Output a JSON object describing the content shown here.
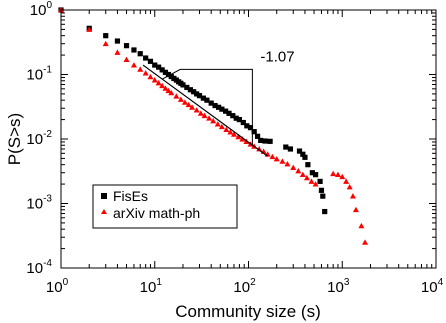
{
  "chart_data": {
    "type": "scatter",
    "xscale": "log",
    "yscale": "log",
    "xlim": [
      1,
      10000
    ],
    "ylim": [
      0.0001,
      1
    ],
    "xlabel": "Community size (s)",
    "ylabel": "P(S>s)",
    "x_tick_labels": [
      {
        "value": 1,
        "base": "10",
        "exp": "0"
      },
      {
        "value": 10,
        "base": "10",
        "exp": "1"
      },
      {
        "value": 100,
        "base": "10",
        "exp": "2"
      },
      {
        "value": 1000,
        "base": "10",
        "exp": "3"
      },
      {
        "value": 10000,
        "base": "10",
        "exp": "4"
      }
    ],
    "y_tick_labels": [
      {
        "value": 1,
        "base": "10",
        "exp": "0"
      },
      {
        "value": 0.1,
        "base": "10",
        "exp": "-1"
      },
      {
        "value": 0.01,
        "base": "10",
        "exp": "-2"
      },
      {
        "value": 0.001,
        "base": "10",
        "exp": "-3"
      },
      {
        "value": 0.0001,
        "base": "10",
        "exp": "-4"
      }
    ],
    "legend_position": "bottom-left",
    "annotation": {
      "text": "-1.07",
      "slope": -1.07,
      "line_x": [
        7.5,
        160
      ],
      "line_y": [
        0.14,
        0.0054
      ]
    },
    "series": [
      {
        "name": "FisEs",
        "marker": "square",
        "color": "#000000",
        "points": [
          [
            1,
            1
          ],
          [
            2,
            0.52
          ],
          [
            3,
            0.4
          ],
          [
            4,
            0.33
          ],
          [
            5,
            0.28
          ],
          [
            6,
            0.24
          ],
          [
            7,
            0.21
          ],
          [
            8,
            0.18
          ],
          [
            9,
            0.16
          ],
          [
            10,
            0.14
          ],
          [
            11,
            0.13
          ],
          [
            12,
            0.118
          ],
          [
            13,
            0.108
          ],
          [
            14,
            0.1
          ],
          [
            15,
            0.093
          ],
          [
            16,
            0.087
          ],
          [
            17,
            0.082
          ],
          [
            18,
            0.077
          ],
          [
            19,
            0.073
          ],
          [
            20,
            0.069
          ],
          [
            22,
            0.063
          ],
          [
            24,
            0.058
          ],
          [
            26,
            0.054
          ],
          [
            28,
            0.05
          ],
          [
            30,
            0.047
          ],
          [
            33,
            0.043
          ],
          [
            36,
            0.04
          ],
          [
            40,
            0.036
          ],
          [
            44,
            0.033
          ],
          [
            48,
            0.031
          ],
          [
            52,
            0.029
          ],
          [
            57,
            0.027
          ],
          [
            62,
            0.025
          ],
          [
            68,
            0.023
          ],
          [
            74,
            0.021
          ],
          [
            80,
            0.02
          ],
          [
            88,
            0.018
          ],
          [
            96,
            0.016
          ],
          [
            105,
            0.015
          ],
          [
            115,
            0.013
          ],
          [
            125,
            0.011
          ],
          [
            135,
            0.0095
          ],
          [
            150,
            0.0093
          ],
          [
            170,
            0.0092
          ],
          [
            250,
            0.0075
          ],
          [
            280,
            0.007
          ],
          [
            350,
            0.0065
          ],
          [
            380,
            0.0058
          ],
          [
            400,
            0.0052
          ],
          [
            430,
            0.004
          ],
          [
            480,
            0.003
          ],
          [
            520,
            0.0028
          ],
          [
            580,
            0.0022
          ],
          [
            600,
            0.0016
          ],
          [
            620,
            0.0013
          ],
          [
            650,
            0.00075
          ]
        ]
      },
      {
        "name": "arXiv math-ph",
        "marker": "triangle",
        "color": "#ff0000",
        "points": [
          [
            1,
            1
          ],
          [
            2,
            0.5
          ],
          [
            3,
            0.3
          ],
          [
            4,
            0.22
          ],
          [
            5,
            0.17
          ],
          [
            6,
            0.14
          ],
          [
            7,
            0.12
          ],
          [
            8,
            0.105
          ],
          [
            9,
            0.092
          ],
          [
            10,
            0.082
          ],
          [
            11,
            0.074
          ],
          [
            12,
            0.067
          ],
          [
            13,
            0.061
          ],
          [
            14,
            0.056
          ],
          [
            15,
            0.052
          ],
          [
            17,
            0.046
          ],
          [
            19,
            0.041
          ],
          [
            21,
            0.037
          ],
          [
            23,
            0.034
          ],
          [
            25,
            0.031
          ],
          [
            28,
            0.028
          ],
          [
            31,
            0.025
          ],
          [
            34,
            0.023
          ],
          [
            38,
            0.021
          ],
          [
            42,
            0.019
          ],
          [
            47,
            0.017
          ],
          [
            52,
            0.0155
          ],
          [
            58,
            0.014
          ],
          [
            64,
            0.0128
          ],
          [
            70,
            0.0118
          ],
          [
            78,
            0.0108
          ],
          [
            86,
            0.0099
          ],
          [
            95,
            0.0091
          ],
          [
            105,
            0.0083
          ],
          [
            115,
            0.0077
          ],
          [
            130,
            0.007
          ],
          [
            145,
            0.0064
          ],
          [
            160,
            0.0058
          ],
          [
            180,
            0.0053
          ],
          [
            200,
            0.0049
          ],
          [
            230,
            0.0045
          ],
          [
            260,
            0.0041
          ],
          [
            300,
            0.0036
          ],
          [
            340,
            0.0032
          ],
          [
            380,
            0.0028
          ],
          [
            420,
            0.0025
          ],
          [
            470,
            0.0022
          ],
          [
            520,
            0.002
          ],
          [
            800,
            0.0029
          ],
          [
            900,
            0.0028
          ],
          [
            1000,
            0.0026
          ],
          [
            1100,
            0.0022
          ],
          [
            1200,
            0.0018
          ],
          [
            1300,
            0.0013
          ],
          [
            1400,
            0.0008
          ],
          [
            1600,
            0.00045
          ],
          [
            1750,
            0.00025
          ]
        ]
      }
    ]
  }
}
